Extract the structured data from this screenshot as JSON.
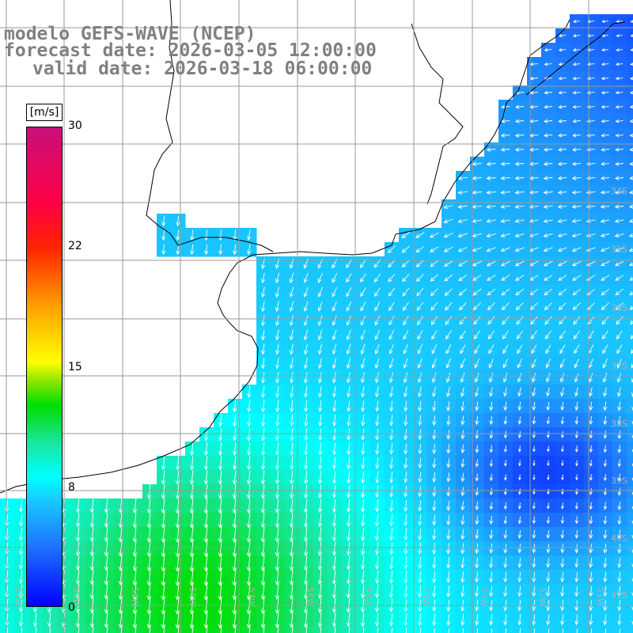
{
  "title": {
    "line1": "modelo GEFS-WAVE (NCEP)",
    "line2": "forecast date: 2026-03-05 12:00:00",
    "line3": "valid date: 2026-03-18 06:00:00"
  },
  "colorbar": {
    "unit": "[m/s]",
    "min": 0,
    "max": 30,
    "labels": [
      "30",
      "22",
      "15",
      "8",
      "0"
    ],
    "colors": [
      "#0000ff",
      "#1e6fff",
      "#19c8ff",
      "#00ffff",
      "#19e6a0",
      "#00dd00",
      "#8ce600",
      "#ffff00",
      "#ffa500",
      "#ff2200",
      "#ff0044",
      "#c8107a"
    ]
  },
  "grid": {
    "lat_labels": [
      "34S",
      "35S",
      "36S",
      "37S",
      "38S",
      "39S",
      "40S",
      "41S"
    ],
    "lon_labels": [
      "61W",
      "60W",
      "59W",
      "58W",
      "57W",
      "56W",
      "55W",
      "54W",
      "53W",
      "52W",
      "51W"
    ]
  },
  "map_colors": {
    "land": "#ffffff",
    "coast": "#000000",
    "gridline": "#9a9a9a",
    "arrow": "#ffffff"
  }
}
